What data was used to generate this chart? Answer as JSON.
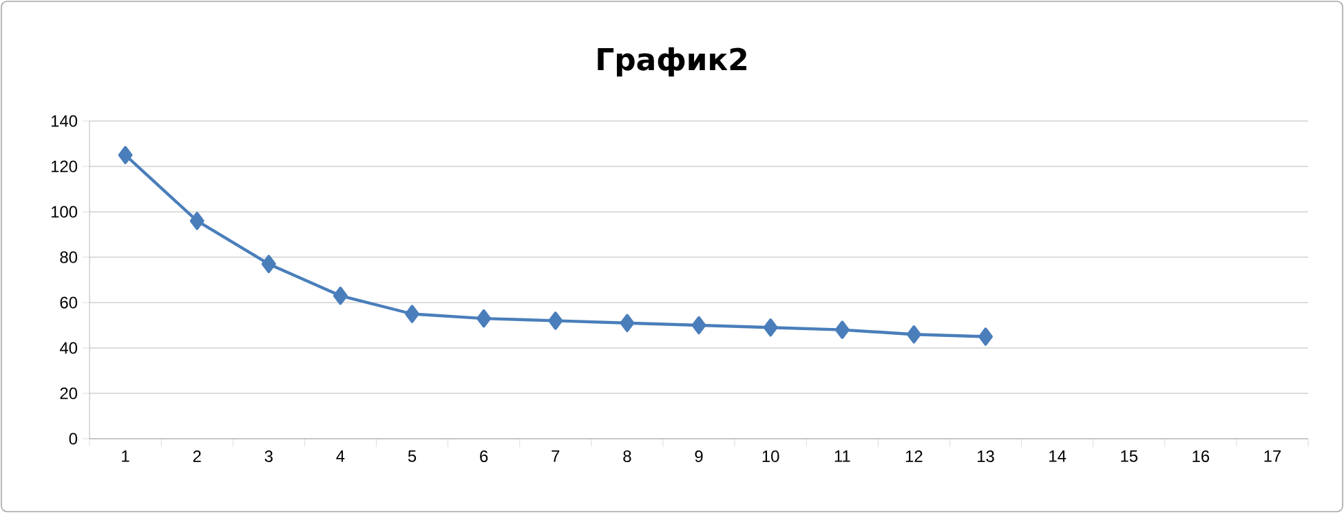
{
  "chart_data": {
    "type": "line",
    "title": "График2",
    "categories": [
      "1",
      "2",
      "3",
      "4",
      "5",
      "6",
      "7",
      "8",
      "9",
      "10",
      "11",
      "12",
      "13",
      "14",
      "15",
      "16",
      "17"
    ],
    "series": [
      {
        "color": "#4a7ebb",
        "values": [
          125,
          96,
          77,
          63,
          55,
          53,
          52,
          51,
          50,
          49,
          48,
          46,
          45,
          null,
          null,
          null,
          null
        ]
      }
    ],
    "ylim": [
      0,
      140
    ],
    "yticks": [
      0,
      20,
      40,
      60,
      80,
      100,
      120,
      140
    ],
    "grid": "y",
    "marker": "diamond",
    "line_style": "solid"
  }
}
